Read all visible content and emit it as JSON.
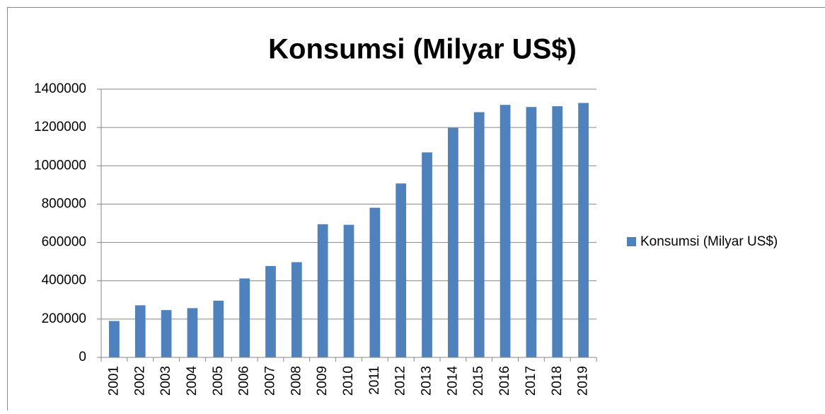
{
  "chart_data": {
    "type": "bar",
    "title": "Konsumsi (Milyar US$)",
    "categories": [
      "2001",
      "2002",
      "2003",
      "2004",
      "2005",
      "2006",
      "2007",
      "2008",
      "2009",
      "2010",
      "2011",
      "2012",
      "2013",
      "2014",
      "2015",
      "2016",
      "2017",
      "2018",
      "2019"
    ],
    "series": [
      {
        "name": "Konsumsi (Milyar US$)",
        "color": "#4f81bd",
        "values": [
          190000,
          272000,
          247000,
          257000,
          296000,
          412000,
          477000,
          497000,
          695000,
          692000,
          781000,
          908000,
          1070000,
          1198000,
          1280000,
          1318000,
          1307000,
          1311000,
          1328000
        ]
      }
    ],
    "ylim": [
      0,
      1400000
    ],
    "yticks": [
      0,
      200000,
      400000,
      600000,
      800000,
      1000000,
      1200000,
      1400000
    ],
    "grid": true,
    "legend": "right"
  }
}
